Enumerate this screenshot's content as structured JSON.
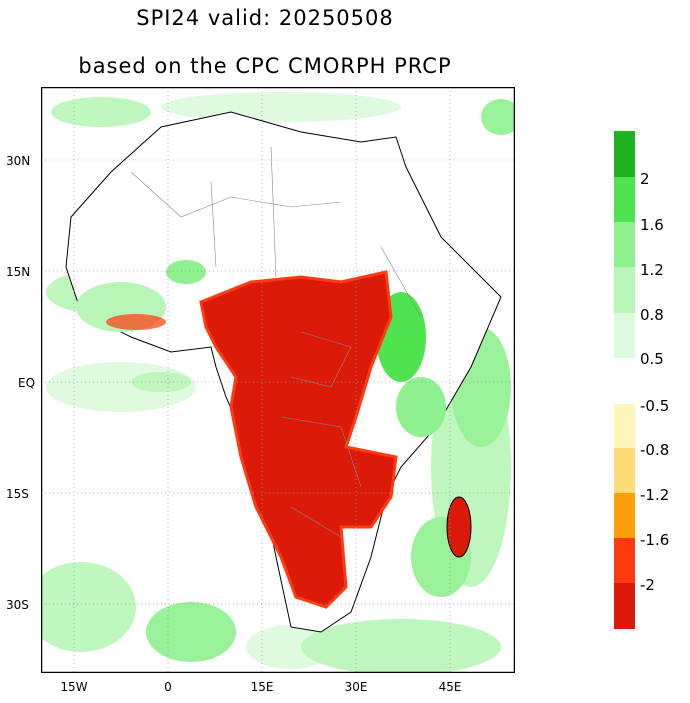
{
  "header": {
    "title": "SPI24  valid: 20250508",
    "subtitle": "based on the CPC CMORPH PRCP"
  },
  "map": {
    "region": "Africa",
    "lat_labels": [
      "30N",
      "15N",
      "EQ",
      "15S",
      "30S"
    ],
    "lon_labels": [
      "15W",
      "0",
      "15E",
      "30E",
      "45E"
    ]
  },
  "colorbar_wet": {
    "labels": [
      "2",
      "1.6",
      "1.2",
      "0.8",
      "0.5"
    ],
    "colors": [
      "#1fb21f",
      "#4fe44f",
      "#8ef08e",
      "#b8f6b8",
      "#dcfadc",
      "#f0fdf0"
    ]
  },
  "colorbar_dry": {
    "labels": [
      "-0.5",
      "-0.8",
      "-1.2",
      "-1.6",
      "-2"
    ],
    "colors": [
      "#fff5b8",
      "#ffdc78",
      "#ffa00a",
      "#ff3a10",
      "#dc1a0a"
    ]
  }
}
